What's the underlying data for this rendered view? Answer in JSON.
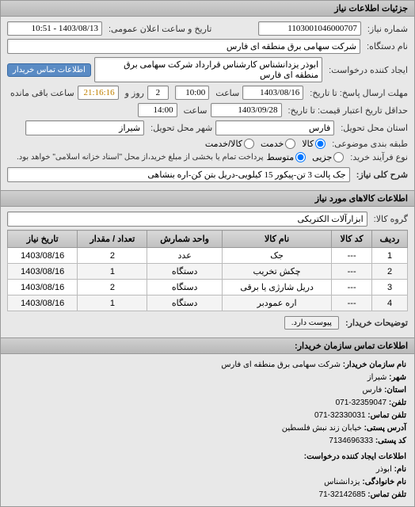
{
  "panel_title": "جزئیات اطلاعات نیاز",
  "fields": {
    "req_number_label": "شماره نیاز:",
    "req_number": "1103001046000707",
    "announce_date_label": "تاریخ و ساعت اعلان عمومی:",
    "announce_date": "1403/08/13 - 10:51",
    "device_name_label": "نام دستگاه:",
    "device_name": "شرکت سهامی برق منطقه ای فارس",
    "requester_label": "ایجاد کننده درخواست:",
    "requester": "ابوذر  یزدانشناس کارشناس قرارداد شرکت سهامی برق منطقه ای فارس",
    "contact_link": "اطلاعات تماس خریدار",
    "deadline_label": "مهلت ارسال پاسخ: تا تاریخ:",
    "deadline_date": "1403/08/16",
    "deadline_time_label": "ساعت",
    "deadline_time": "10:00",
    "remain_label": "روز و",
    "remain_days": "2",
    "remain_time": "21:16:16",
    "remain_suffix": "ساعت باقی مانده",
    "validity_label": "حداقل تاریخ اعتبار قیمت: تا تاریخ:",
    "validity_date": "1403/09/28",
    "validity_time_label": "ساعت",
    "validity_time": "14:00",
    "province_label": "استان محل تحویل:",
    "province": "فارس",
    "city_label": "شهر محل تحویل:",
    "city": "شیراز",
    "packing_label": "طبقه بندی موضوعی:",
    "packing_opts": [
      "کالا",
      "خدمت",
      "کالا/خدمت"
    ],
    "packing_selected": 0,
    "process_label": "نوع فرآیند خرید:",
    "process_opts": [
      "جزیی",
      "متوسط"
    ],
    "process_selected": 1,
    "process_note": "پرداخت تمام یا بخشی از مبلغ خرید،از محل \"اسناد خزانه اسلامی\" خواهد بود.",
    "summary_label": "شرح کلی نیاز:",
    "summary": "جک پالت 3 تن-پیکور 15 کیلویی-دریل بتن کن-اره بنشاهی",
    "items_section_title": "اطلاعات کالاهای مورد نیاز",
    "group_label": "گروه کالا:",
    "group": "ابزارآلات الکتریکی",
    "buyer_notes_label": "توضیحات خریدار:",
    "attach_btn": "پیوست دارد."
  },
  "table": {
    "columns": [
      "ردیف",
      "کد کالا",
      "نام کالا",
      "واحد شمارش",
      "تعداد / مقدار",
      "تاریخ نیاز"
    ],
    "rows": [
      [
        "1",
        "---",
        "جک",
        "عدد",
        "2",
        "1403/08/16"
      ],
      [
        "2",
        "---",
        "چکش تخریب",
        "دستگاه",
        "1",
        "1403/08/16"
      ],
      [
        "3",
        "---",
        "دریل شارژی یا برقی",
        "دستگاه",
        "2",
        "1403/08/16"
      ],
      [
        "4",
        "---",
        "اره عمودبر",
        "دستگاه",
        "1",
        "1403/08/16"
      ]
    ]
  },
  "contact": {
    "section_title": "اطلاعات تماس سازمان خریدار:",
    "org_label": "نام سازمان خریدار:",
    "org": "شرکت سهامی برق منطقه ای فارس",
    "city_label": "شهر:",
    "city": "شیراز",
    "province_label": "استان:",
    "province": "فارس",
    "phone_label": "تلفن:",
    "phone": "32359047-071",
    "fax_label": "تلفن تماس:",
    "fax": "32330031-071",
    "postal_label": "آدرس پستی:",
    "postal": "خیابان زند نبش فلسطین",
    "zip_label": "کد پستی:",
    "zip": "7134696333",
    "creator_section": "اطلاعات ایجاد کننده درخواست:",
    "name_label": "نام:",
    "name": "ابوذر",
    "lname_label": "نام خانوادگی:",
    "lname": "یزدانشناس",
    "mobile_label": "تلفن تماس:",
    "mobile": "32142685-71"
  }
}
